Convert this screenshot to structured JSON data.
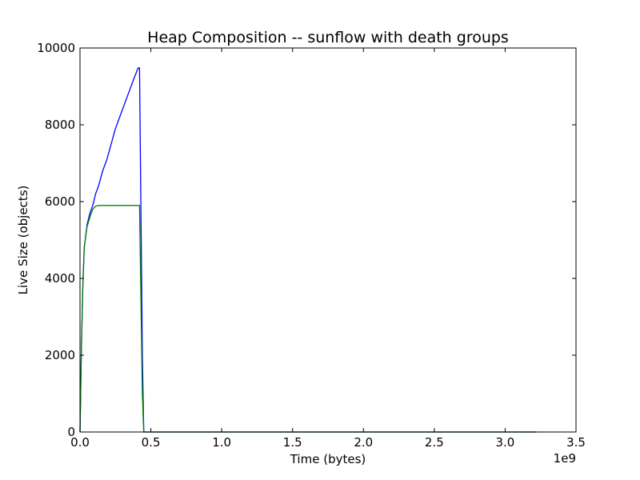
{
  "chart_data": {
    "type": "line",
    "title": "Heap Composition -- sunflow with death groups",
    "xlabel": "Time (bytes)",
    "ylabel": "Live Size (objects)",
    "x_offset_label": "1e9",
    "xlim": [
      0,
      3.5
    ],
    "ylim": [
      0,
      10000
    ],
    "x_ticks": [
      "0.0",
      "0.5",
      "1.0",
      "1.5",
      "2.0",
      "2.5",
      "3.0",
      "3.5"
    ],
    "x_tick_values": [
      0,
      0.5,
      1.0,
      1.5,
      2.0,
      2.5,
      3.0,
      3.5
    ],
    "y_ticks": [
      "0",
      "2000",
      "4000",
      "6000",
      "8000",
      "10000"
    ],
    "y_tick_values": [
      0,
      2000,
      4000,
      6000,
      8000,
      10000
    ],
    "grid": false,
    "legend": false,
    "series": [
      {
        "color": "#0000ff",
        "x": [
          0.0,
          0.01,
          0.02,
          0.03,
          0.05,
          0.07,
          0.09,
          0.11,
          0.13,
          0.16,
          0.19,
          0.22,
          0.25,
          0.28,
          0.31,
          0.35,
          0.38,
          0.41,
          0.42,
          0.44,
          0.45,
          3.22
        ],
        "y": [
          0,
          2200,
          3800,
          4800,
          5400,
          5700,
          5900,
          6200,
          6400,
          6800,
          7100,
          7500,
          7900,
          8200,
          8500,
          8900,
          9200,
          9480,
          9480,
          2000,
          0,
          0
        ]
      },
      {
        "color": "#008000",
        "x": [
          0.0,
          0.01,
          0.02,
          0.03,
          0.05,
          0.07,
          0.09,
          0.11,
          0.13,
          0.16,
          0.2,
          0.25,
          0.3,
          0.35,
          0.41,
          0.42,
          0.44,
          0.45,
          3.22
        ],
        "y": [
          0,
          2200,
          3800,
          4800,
          5350,
          5600,
          5800,
          5880,
          5900,
          5900,
          5900,
          5900,
          5900,
          5900,
          5900,
          5900,
          1000,
          0,
          0
        ]
      }
    ]
  }
}
